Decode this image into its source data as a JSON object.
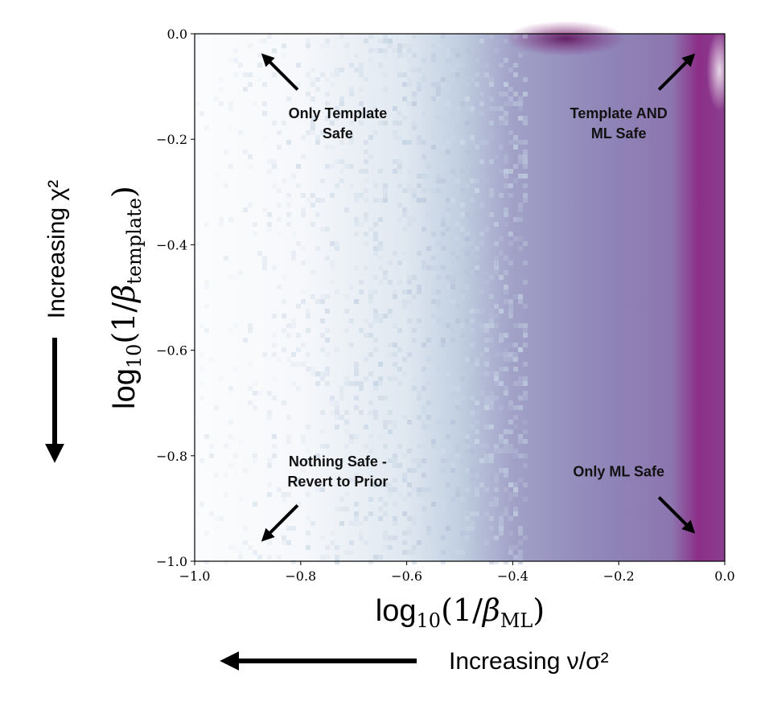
{
  "chart_data": {
    "type": "heatmap",
    "title": "",
    "xlabel": "log₁₀(1/β_ML)",
    "ylabel": "log₁₀(1/β_template)",
    "xlim": [
      -1.0,
      0.0
    ],
    "ylim": [
      -1.0,
      0.0
    ],
    "x_ticks": [
      "−1.0",
      "−0.8",
      "−0.6",
      "−0.4",
      "−0.2",
      "0.0"
    ],
    "y_ticks": [
      "0.0",
      "−0.2",
      "−0.4",
      "−0.6",
      "−0.8",
      "−1.0"
    ],
    "x_tick_values": [
      -1.0,
      -0.8,
      -0.6,
      -0.4,
      -0.2,
      0.0
    ],
    "y_tick_values": [
      0.0,
      -0.2,
      -0.4,
      -0.6,
      -0.8,
      -1.0
    ],
    "colormap": [
      "#ffffff",
      "#c4d3e3",
      "#8e86b8",
      "#8a1f7e"
    ],
    "density_by_x": [
      {
        "x": -1.0,
        "level": 0.02
      },
      {
        "x": -0.8,
        "level": 0.05
      },
      {
        "x": -0.6,
        "level": 0.18
      },
      {
        "x": -0.5,
        "level": 0.35
      },
      {
        "x": -0.4,
        "level": 0.55
      },
      {
        "x": -0.3,
        "level": 0.62
      },
      {
        "x": -0.2,
        "level": 0.68
      },
      {
        "x": -0.1,
        "level": 0.72
      },
      {
        "x": -0.05,
        "level": 0.95
      },
      {
        "x": 0.0,
        "level": 0.9
      }
    ],
    "hotspot": {
      "x": -0.3,
      "y": 0.0
    },
    "annotations": [
      {
        "text": "Only Template\nSafe",
        "x": -0.73,
        "y": -0.17,
        "arrow_dir": "up-left"
      },
      {
        "text": "Template AND\nML Safe",
        "x": -0.2,
        "y": -0.17,
        "arrow_dir": "up-right"
      },
      {
        "text": "Nothing Safe -\nRevert to Prior",
        "x": -0.73,
        "y": -0.83,
        "arrow_dir": "down-left"
      },
      {
        "text": "Only ML Safe",
        "x": -0.2,
        "y": -0.83,
        "arrow_dir": "down-right"
      }
    ]
  },
  "side_labels": {
    "left": "Increasing χ²",
    "bottom": "Increasing ν/σ²"
  }
}
